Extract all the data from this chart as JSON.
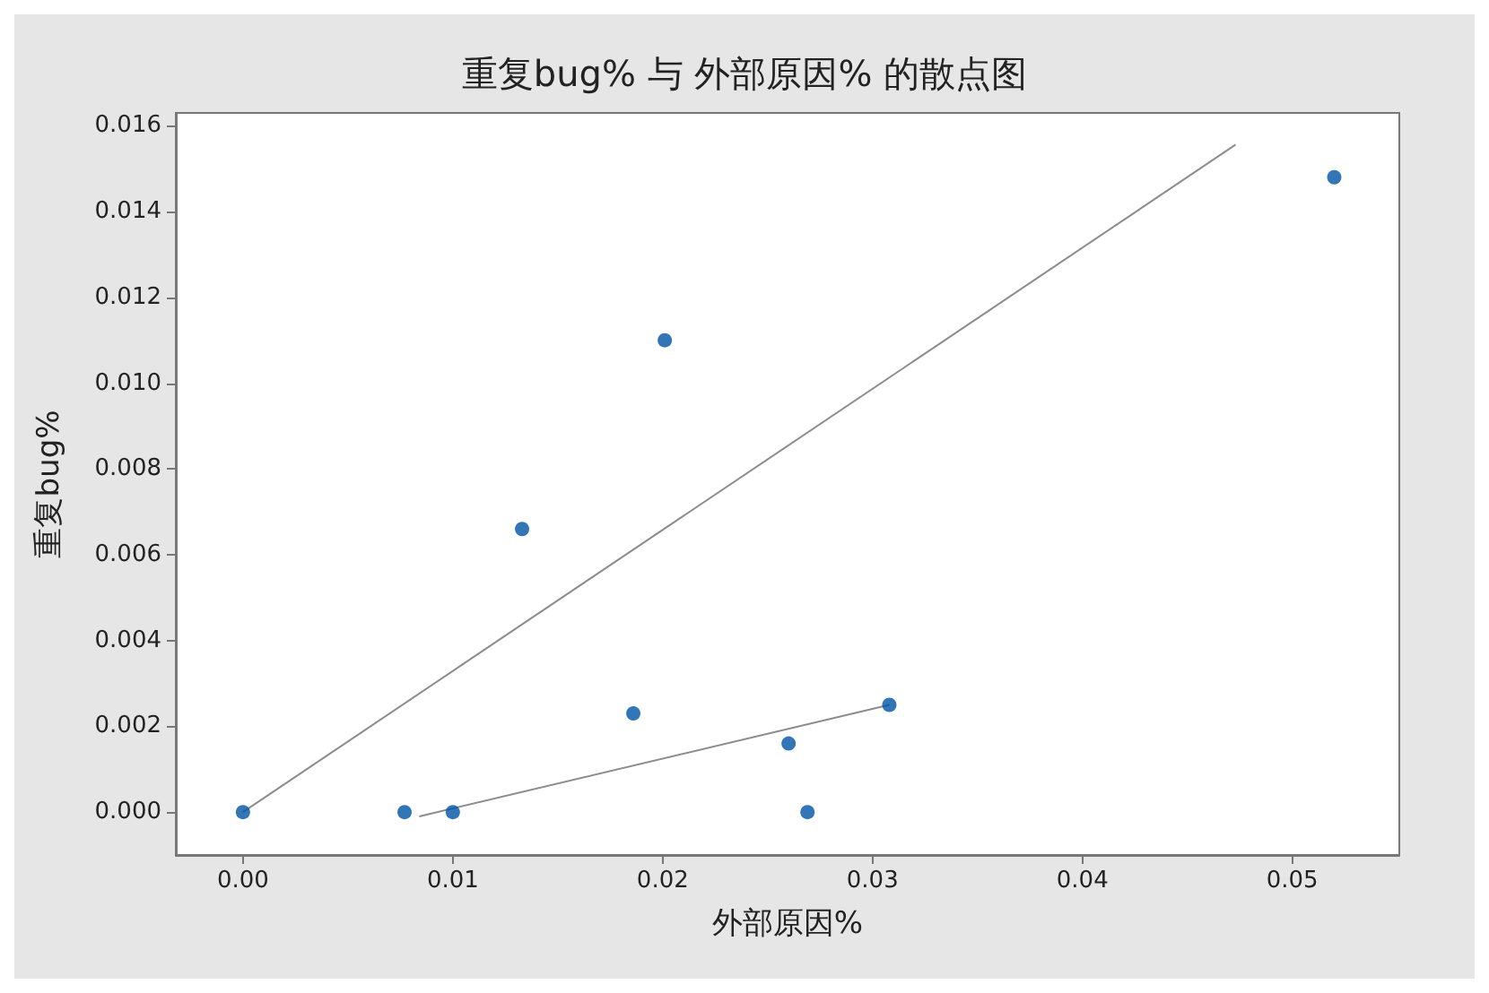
{
  "chart_data": {
    "type": "scatter",
    "title": "重复bug% 与 外部原因% 的散点图",
    "xlabel": "外部原因%",
    "ylabel": "重复bug%",
    "series": [
      {
        "color": "#0054a6",
        "marker": "circle",
        "x": [
          0,
          0.0077,
          0.01,
          0.0133,
          0.0186,
          0.0201,
          0.026,
          0.0269,
          0.0308,
          0.052
        ],
        "values": [
          0,
          0,
          0,
          0.0066,
          0.0023,
          0.011,
          0.0016,
          0,
          0.0025,
          0.0148
        ]
      },
      {
        "type": "line",
        "color": "#8c8c8c",
        "x": [
          0,
          0.0473
        ],
        "values": [
          0,
          0.01556
        ],
        "marker": "none"
      },
      {
        "type": "line",
        "color": "#8c8c8c",
        "x": [
          0.0084,
          0.0308
        ],
        "values": [
          -0.0001,
          0.0025
        ],
        "marker": "none"
      }
    ],
    "xlim": [
      -0.0032,
      0.0551
    ],
    "ylim": [
      -0.001,
      0.0163
    ],
    "xticks": [
      {
        "value": 0,
        "label": "0.00"
      },
      {
        "value": 0.01,
        "label": "0.01"
      },
      {
        "value": 0.02,
        "label": "0.02"
      },
      {
        "value": 0.03,
        "label": "0.03"
      },
      {
        "value": 0.04,
        "label": "0.04"
      },
      {
        "value": 0.05,
        "label": "0.05"
      }
    ],
    "yticks": [
      {
        "value": 0,
        "label": "0.000"
      },
      {
        "value": 0.002,
        "label": "0.002"
      },
      {
        "value": 0.004,
        "label": "0.004"
      },
      {
        "value": 0.006,
        "label": "0.006"
      },
      {
        "value": 0.008,
        "label": "0.008"
      },
      {
        "value": 0.01,
        "label": "0.010"
      },
      {
        "value": 0.012,
        "label": "0.012"
      },
      {
        "value": 0.014,
        "label": "0.014"
      },
      {
        "value": 0.016,
        "label": "0.016"
      }
    ],
    "grid": false
  }
}
